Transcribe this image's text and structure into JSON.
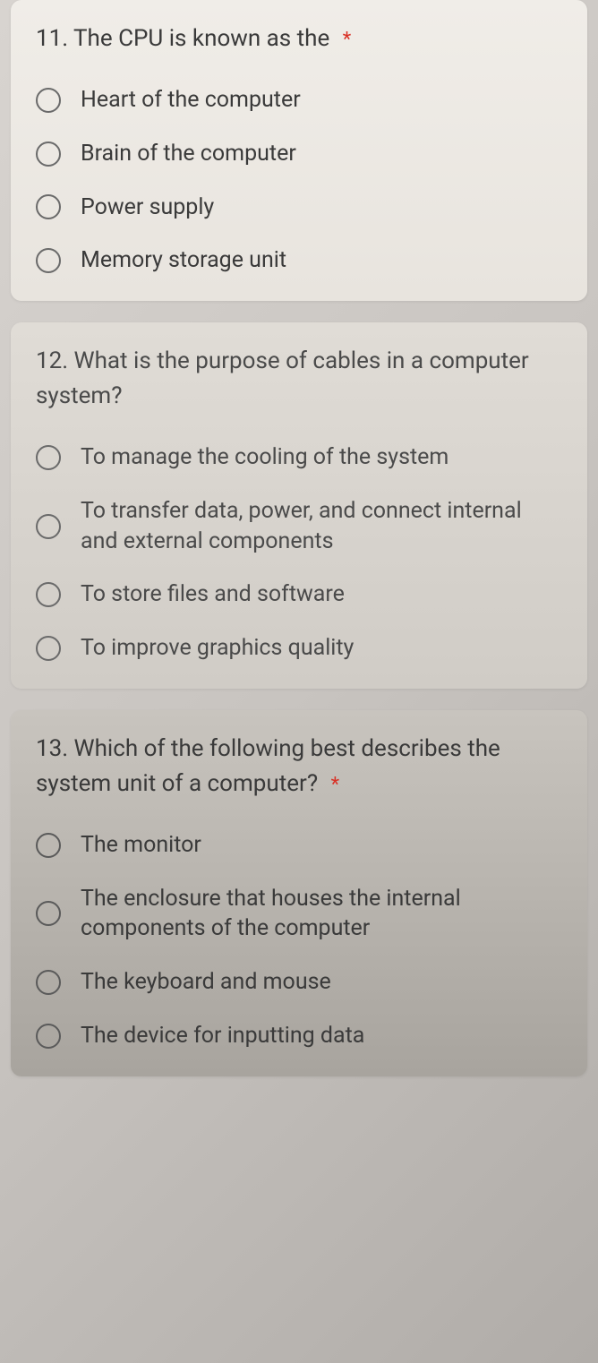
{
  "questions": [
    {
      "number": "11",
      "text": "11. The CPU is known as the",
      "required": true,
      "options": [
        "Heart of the computer",
        "Brain of the computer",
        "Power supply",
        "Memory storage unit"
      ]
    },
    {
      "number": "12",
      "text": "12. What is the purpose of cables in a computer system?",
      "required": false,
      "options": [
        "To manage the cooling of the system",
        "To transfer data, power, and connect internal and external components",
        "To store files and software",
        "To improve graphics quality"
      ]
    },
    {
      "number": "13",
      "text": "13. Which of the following best describes the system unit of a computer?",
      "required": true,
      "options": [
        "The monitor",
        "The enclosure that houses the internal components of the computer",
        "The keyboard and mouse",
        "The device for inputting data"
      ]
    }
  ],
  "required_star": "*",
  "colors": {
    "card_bg": "#f0ede8",
    "text_primary": "#3a3a3a",
    "radio_border": "#6a6a6a",
    "required": "#d93025"
  }
}
